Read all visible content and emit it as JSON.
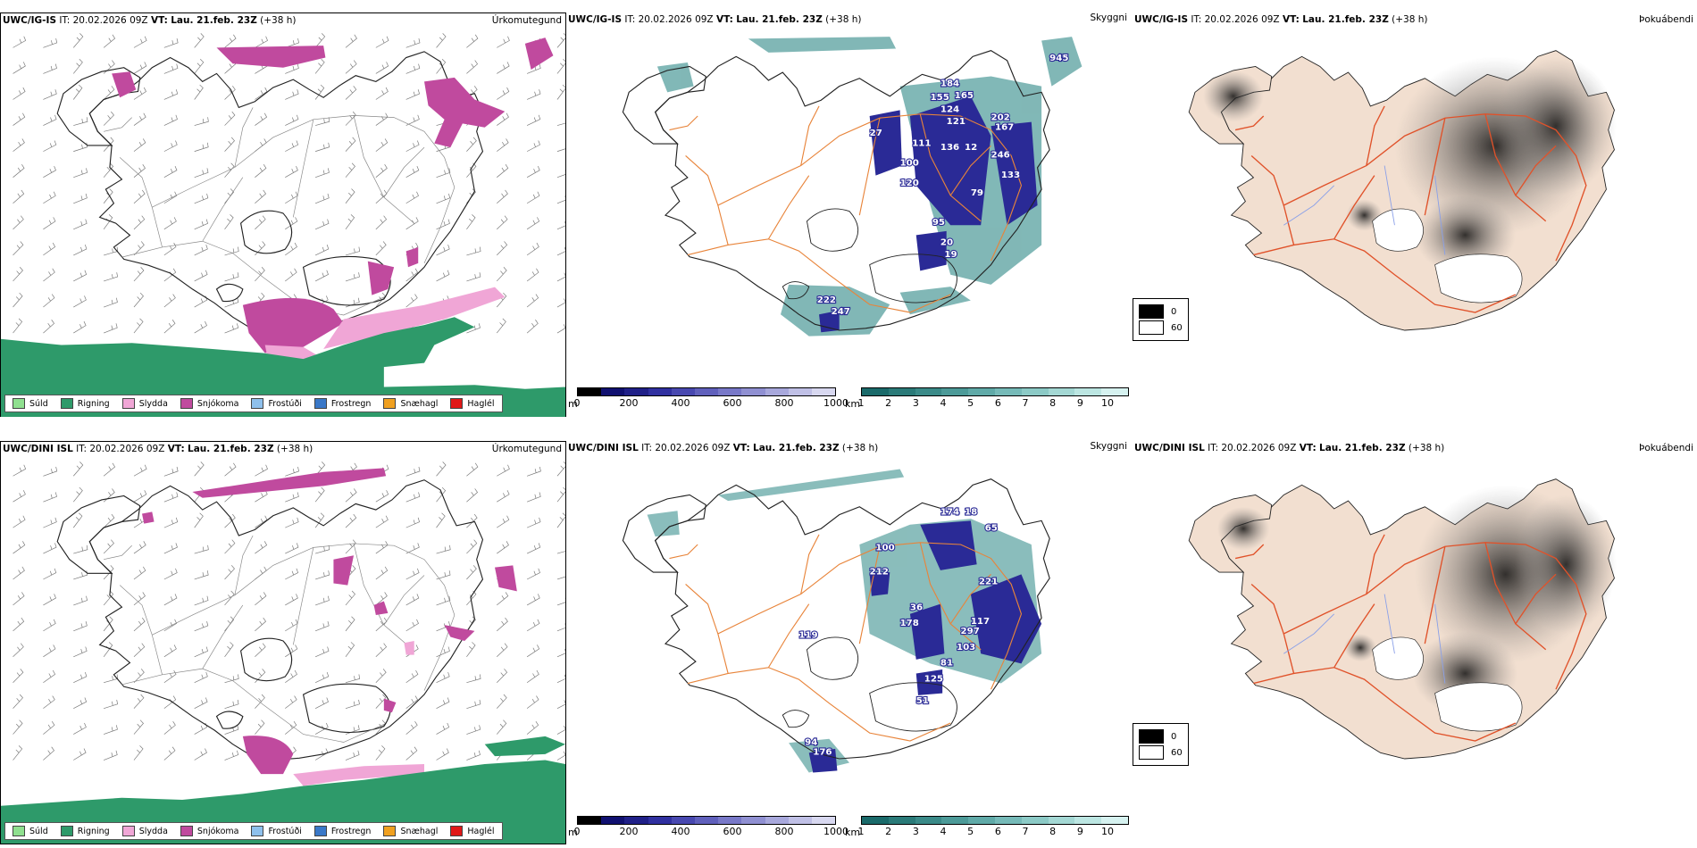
{
  "rows": [
    {
      "model": "UWC/IG-IS",
      "it_label": "IT:",
      "it_value": "20.02.2026 09Z",
      "vt_label": "VT:",
      "vt_value": "Lau. 21.feb. 23Z",
      "lead": "(+38 h)"
    },
    {
      "model": "UWC/DINI ISL",
      "it_label": "IT:",
      "it_value": "20.02.2026 09Z",
      "vt_label": "VT:",
      "vt_value": "Lau. 21.feb. 23Z",
      "lead": "(+38 h)"
    }
  ],
  "panel_titles": {
    "precip": "Úrkomutegund",
    "visibility": "Skyggni",
    "fog": "Þokuábendi"
  },
  "precip_legend": [
    {
      "label": "Súld",
      "color": "#8fe08f"
    },
    {
      "label": "Rigning",
      "color": "#2e9a6a"
    },
    {
      "label": "Slydda",
      "color": "#f0a6d6"
    },
    {
      "label": "Snjókoma",
      "color": "#c04a9e"
    },
    {
      "label": "Frostúði",
      "color": "#8ec0ec"
    },
    {
      "label": "Frostregn",
      "color": "#3a78c8"
    },
    {
      "label": "Snæhagl",
      "color": "#f0a020"
    },
    {
      "label": "Haglél",
      "color": "#e01818"
    }
  ],
  "visibility_scale": {
    "m_unit": "m",
    "m_ticks": [
      "0",
      "200",
      "400",
      "600",
      "800",
      "1000"
    ],
    "m_colors": [
      "#000000",
      "#101070",
      "#202088",
      "#3030a0",
      "#4848b0",
      "#6060bc",
      "#7878c8",
      "#9090d2",
      "#a8a8dc",
      "#c0c0e6",
      "#d8d8f0"
    ],
    "km_unit": "km",
    "km_ticks": [
      "1",
      "2",
      "3",
      "4",
      "5",
      "6",
      "7",
      "8",
      "9",
      "10"
    ],
    "km_colors": [
      "#1a6a6a",
      "#2a7a78",
      "#3a8a88",
      "#4c9a98",
      "#60aaa8",
      "#76bab8",
      "#8ccac6",
      "#a4d8d4",
      "#bce6e2",
      "#d6f2f0"
    ]
  },
  "visibility_labels_top": [
    "945",
    "184",
    "155",
    "165",
    "124",
    "202",
    "121",
    "167",
    "27",
    "111",
    "136",
    "12",
    "246",
    "100",
    "133",
    "120",
    "79",
    "95",
    "20",
    "19",
    "222",
    "247"
  ],
  "visibility_labels_bottom": [
    "174",
    "18",
    "100",
    "65",
    "212",
    "221",
    "36",
    "178",
    "117",
    "297",
    "119",
    "103",
    "81",
    "125",
    "51",
    "94",
    "176"
  ],
  "fog_key": [
    {
      "label": "0",
      "color": "#000000"
    },
    {
      "label": "60",
      "color": "#ffffff"
    }
  ],
  "colors": {
    "coast": "#222222",
    "roads": "#e8843a",
    "fog_land": "#f2dfd0",
    "fog_roads": "#e0522a",
    "rivers": "#8aa0e8",
    "snow": "#c04a9e",
    "sleet": "#f0a6d6",
    "rain": "#2e9a6a",
    "vis_teal": "#4c9a98",
    "vis_blue": "#2a2a96"
  }
}
